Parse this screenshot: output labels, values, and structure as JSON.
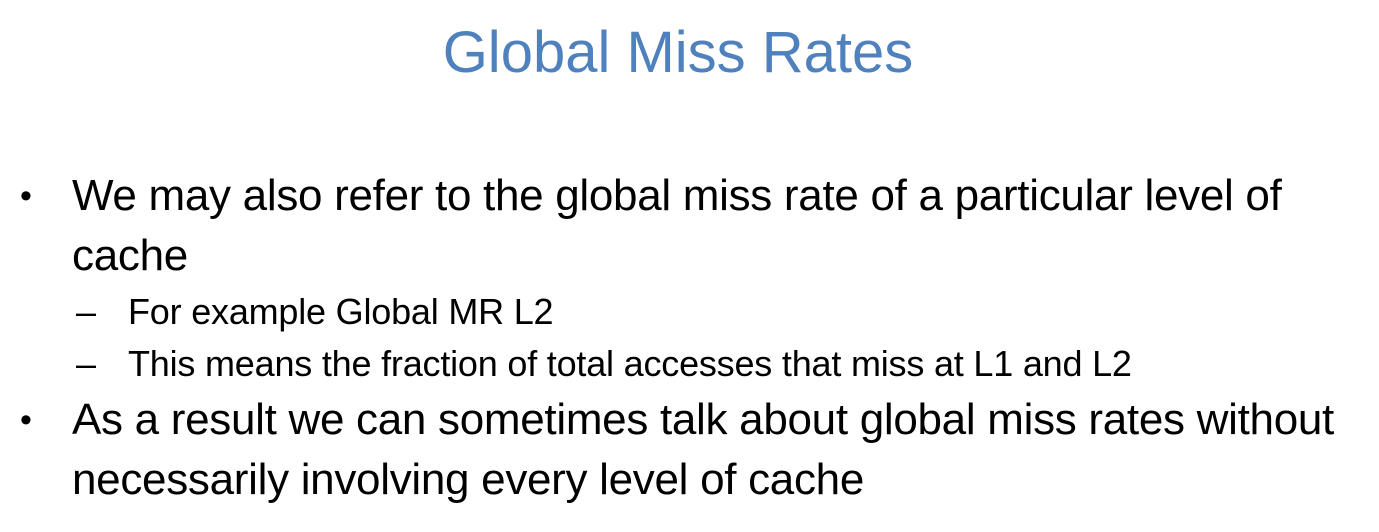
{
  "slide": {
    "title": "Global Miss Rates",
    "title_color": "#4f81bd",
    "bullets": [
      {
        "marker": "•",
        "text": "We may also refer to the global miss rate of a particular level of cache",
        "subitems": [
          {
            "marker": "–",
            "text": "For example Global MR L2"
          },
          {
            "marker": "–",
            "text": "This means the fraction of total accesses that miss at L1 and L2"
          }
        ]
      },
      {
        "marker": "•",
        "text": "As a result we can sometimes talk about global miss rates without necessarily involving every level of cache"
      }
    ]
  }
}
